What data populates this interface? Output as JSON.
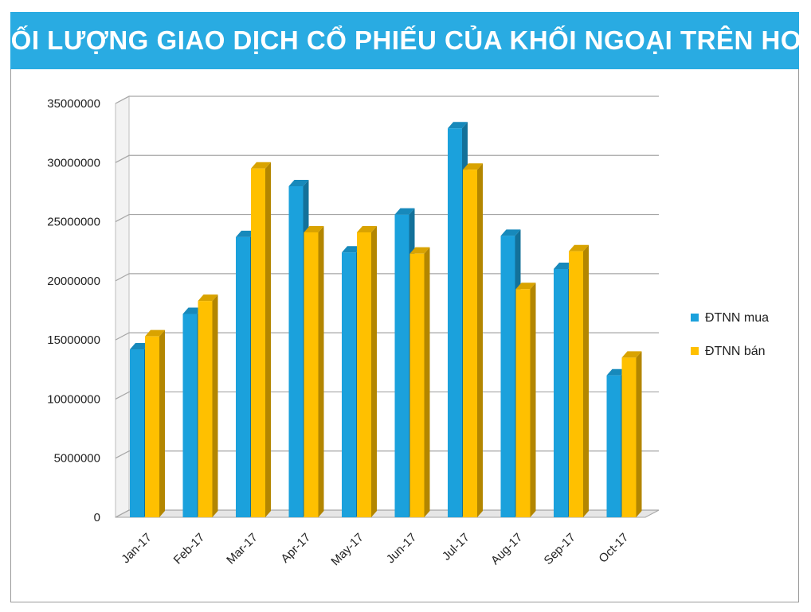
{
  "chart_data": {
    "type": "bar",
    "title": "KHỐI LƯỢNG GIAO DỊCH CỔ PHIẾU CỦA KHỐI NGOẠI TRÊN HOSE",
    "categories": [
      "Jan-17",
      "Feb-17",
      "Mar-17",
      "Apr-17",
      "May-17",
      "Jun-17",
      "Jul-17",
      "Aug-17",
      "Sep-17",
      "Oct-17"
    ],
    "series": [
      {
        "name": "ĐTNN mua",
        "color": "#1ba1dc",
        "values": [
          14200000,
          17200000,
          23700000,
          28000000,
          22400000,
          25600000,
          32900000,
          23800000,
          21000000,
          12000000
        ]
      },
      {
        "name": "ĐTNN bán",
        "color": "#ffc000",
        "values": [
          15300000,
          18300000,
          29500000,
          24100000,
          24100000,
          22300000,
          29400000,
          19300000,
          22500000,
          13500000
        ]
      }
    ],
    "ylim": [
      0,
      35000000
    ],
    "yticks": [
      "0",
      "5000000",
      "10000000",
      "15000000",
      "20000000",
      "25000000",
      "30000000",
      "35000000"
    ],
    "grid": true,
    "legend_position": "right"
  }
}
